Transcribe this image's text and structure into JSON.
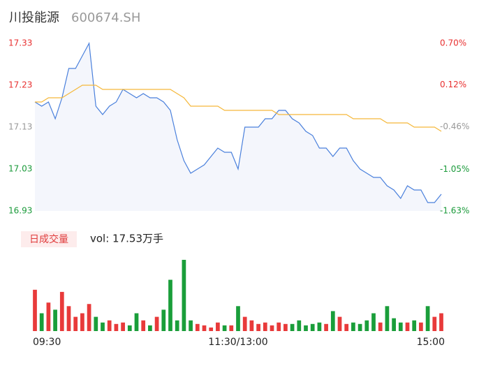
{
  "chart_data": [
    {
      "type": "line",
      "title": "川投能源",
      "subtitle": "600674.SH",
      "x": [
        0,
        4,
        8,
        12,
        16,
        20,
        24,
        28,
        32,
        36,
        40,
        44,
        48,
        52,
        56,
        60,
        64,
        68,
        72,
        76,
        80,
        84,
        88,
        92,
        96,
        100,
        104,
        108,
        112,
        116,
        120,
        124,
        128,
        132,
        136,
        140,
        144,
        148,
        152,
        156,
        160,
        164,
        168,
        172,
        176,
        180,
        184,
        188,
        192,
        196,
        200,
        204,
        208,
        212,
        216,
        220,
        224,
        228,
        232,
        236,
        240
      ],
      "xlim": [
        0,
        240
      ],
      "ylim": [
        16.93,
        17.33
      ],
      "yticks": [
        17.33,
        17.23,
        17.13,
        17.03,
        16.93
      ],
      "ytick_colors": [
        "#e83030",
        "#e83030",
        "#999999",
        "#1a9a3a",
        "#1a9a3a"
      ],
      "y2lim": [
        -1.63,
        0.7
      ],
      "y2ticks": [
        {
          "value": 0.7,
          "label": "0.70%"
        },
        {
          "value": 0.12,
          "label": "0.12%"
        },
        {
          "value": -0.46,
          "label": "-0.46%"
        },
        {
          "value": -1.05,
          "label": "-1.05%"
        },
        {
          "value": -1.63,
          "label": "-1.63%"
        }
      ],
      "y2tick_colors": [
        "#e83030",
        "#e83030",
        "#999999",
        "#1a9a3a",
        "#1a9a3a"
      ],
      "series": [
        {
          "color": "#4a80dc",
          "area_color": "#f4f6fc",
          "values": [
            17.19,
            17.18,
            17.19,
            17.15,
            17.2,
            17.27,
            17.27,
            17.3,
            17.33,
            17.18,
            17.16,
            17.18,
            17.19,
            17.22,
            17.21,
            17.2,
            17.21,
            17.2,
            17.2,
            17.19,
            17.17,
            17.1,
            17.05,
            17.02,
            17.03,
            17.04,
            17.06,
            17.08,
            17.07,
            17.07,
            17.03,
            17.13,
            17.13,
            17.13,
            17.15,
            17.15,
            17.17,
            17.17,
            17.15,
            17.14,
            17.12,
            17.11,
            17.08,
            17.08,
            17.06,
            17.08,
            17.08,
            17.05,
            17.03,
            17.02,
            17.01,
            17.01,
            16.99,
            16.98,
            16.96,
            16.99,
            16.98,
            16.98,
            16.95,
            16.95,
            16.97
          ]
        },
        {
          "color": "#f5b83a",
          "values": [
            17.19,
            17.19,
            17.2,
            17.2,
            17.2,
            17.21,
            17.22,
            17.23,
            17.23,
            17.23,
            17.22,
            17.22,
            17.22,
            17.22,
            17.22,
            17.22,
            17.22,
            17.22,
            17.22,
            17.22,
            17.22,
            17.21,
            17.2,
            17.18,
            17.18,
            17.18,
            17.18,
            17.18,
            17.17,
            17.17,
            17.17,
            17.17,
            17.17,
            17.17,
            17.17,
            17.17,
            17.16,
            17.16,
            17.16,
            17.16,
            17.16,
            17.16,
            17.16,
            17.16,
            17.16,
            17.16,
            17.16,
            17.15,
            17.15,
            17.15,
            17.15,
            17.15,
            17.14,
            17.14,
            17.14,
            17.14,
            17.13,
            17.13,
            17.13,
            17.13,
            17.12
          ]
        }
      ]
    },
    {
      "type": "bar",
      "title": "日成交量",
      "subtitle": "vol: 17.53万手",
      "x": [
        0,
        4,
        8,
        12,
        16,
        20,
        24,
        28,
        32,
        36,
        40,
        44,
        48,
        52,
        56,
        60,
        64,
        68,
        72,
        76,
        80,
        84,
        88,
        92,
        96,
        100,
        104,
        108,
        112,
        116,
        120,
        124,
        128,
        132,
        136,
        140,
        144,
        148,
        152,
        156,
        160,
        164,
        168,
        172,
        176,
        180,
        184,
        188,
        192,
        196,
        200,
        204,
        208,
        212,
        216,
        220,
        224,
        228,
        232,
        236,
        240
      ],
      "xlim": [
        0,
        240
      ],
      "xticks": [
        {
          "value": 0,
          "label": "09:30"
        },
        {
          "value": 120,
          "label": "11:30/13:00"
        },
        {
          "value": 240,
          "label": "15:00"
        }
      ],
      "values": [
        58,
        25,
        40,
        30,
        55,
        35,
        20,
        25,
        38,
        20,
        12,
        15,
        10,
        12,
        8,
        25,
        15,
        8,
        20,
        30,
        72,
        15,
        100,
        15,
        10,
        8,
        5,
        12,
        8,
        8,
        35,
        20,
        15,
        10,
        12,
        8,
        12,
        10,
        10,
        15,
        8,
        10,
        12,
        10,
        28,
        20,
        10,
        12,
        10,
        15,
        25,
        12,
        35,
        18,
        12,
        12,
        15,
        12,
        35,
        20,
        25
      ],
      "up_color": "#e83a3a",
      "down_color": "#1a9e3a"
    }
  ]
}
